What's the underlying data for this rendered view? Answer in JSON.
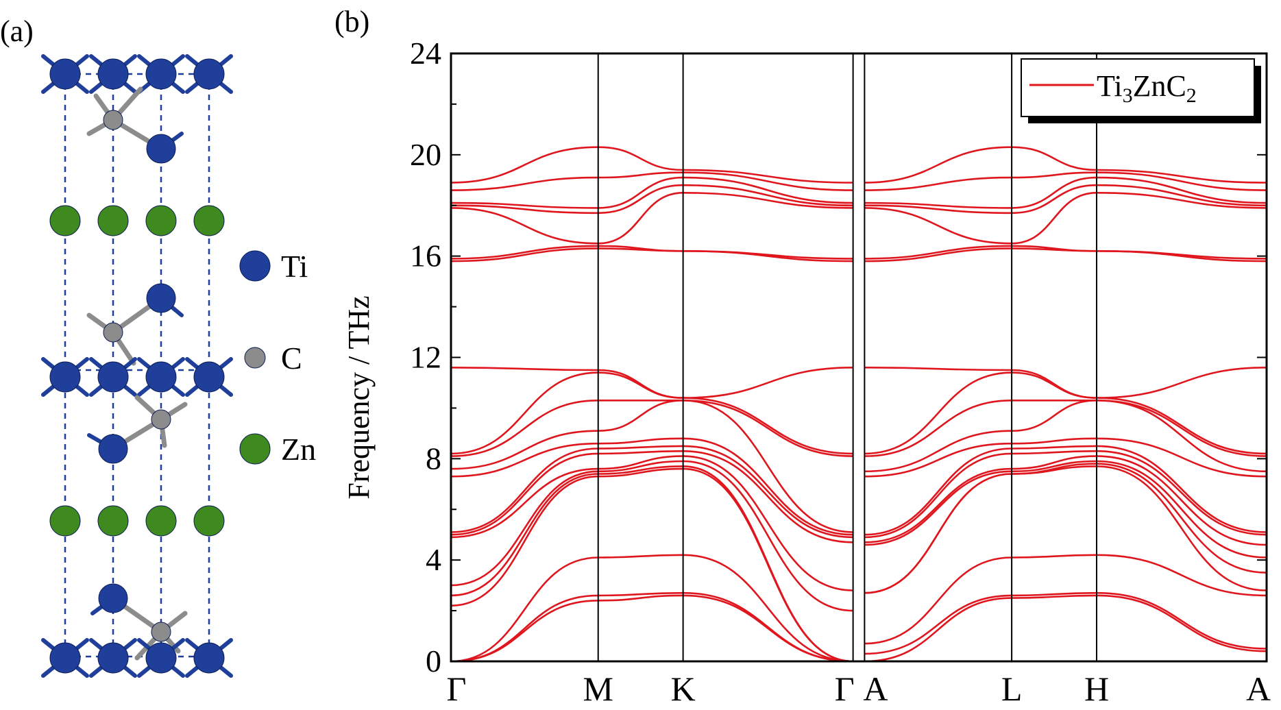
{
  "panels": {
    "a_label": "(a)",
    "b_label": "(b)"
  },
  "crystal": {
    "atom_colors": {
      "Ti": "#1f3f9a",
      "C": "#8c8c8c",
      "Zn": "#3f8a1e"
    },
    "bond_color": "#8c8c8c",
    "cell_line_color": "#1f3f9a",
    "legend": [
      {
        "symbol": "Ti",
        "color": "#1f3f9a",
        "icon": "ti-atom-icon"
      },
      {
        "symbol": "C",
        "color": "#8c8c8c",
        "icon": "c-atom-icon"
      },
      {
        "symbol": "Zn",
        "color": "#3f8a1e",
        "icon": "zn-atom-icon"
      }
    ]
  },
  "chart_data": {
    "type": "line",
    "title": "",
    "ylabel": "Frequency / THz",
    "xlabel": "",
    "ylim": [
      0,
      24
    ],
    "yticks": [
      0,
      4,
      8,
      12,
      16,
      20,
      24
    ],
    "line_color": "#e0161e",
    "high_symmetry_points": [
      {
        "label": "Γ",
        "x": 0
      },
      {
        "label": "M",
        "x": 1.0
      },
      {
        "label": "K",
        "x": 1.577
      },
      {
        "label": "Γ",
        "x": 2.732
      },
      {
        "label": "A",
        "x": 2.81
      },
      {
        "label": "L",
        "x": 3.81
      },
      {
        "label": "H",
        "x": 4.387
      },
      {
        "label": "A",
        "x": 5.542
      }
    ],
    "gamma_a_break": [
      2.732,
      2.81
    ],
    "legend": {
      "position": "top-right",
      "label_base": "Ti",
      "sub1": "3",
      "mid": "ZnC",
      "sub2": "2"
    },
    "series": [
      {
        "y": [
          0,
          2.4,
          2.6,
          0,
          0,
          2.5,
          2.6,
          0.4
        ]
      },
      {
        "y": [
          0,
          2.6,
          2.7,
          0,
          0.3,
          2.6,
          2.7,
          0.5
        ]
      },
      {
        "y": [
          0,
          4.1,
          4.2,
          0,
          0.7,
          4.1,
          4.2,
          2.6
        ]
      },
      {
        "y": [
          2.2,
          7.3,
          7.6,
          0,
          2.7,
          7.4,
          7.7,
          2.8
        ]
      },
      {
        "y": [
          2.6,
          7.4,
          7.7,
          0,
          2.7,
          7.4,
          7.8,
          3.5
        ]
      },
      {
        "y": [
          3.0,
          7.5,
          7.9,
          2.0,
          4.6,
          7.5,
          7.9,
          4.1
        ]
      },
      {
        "y": [
          4.9,
          7.6,
          8.1,
          2.8,
          4.7,
          7.6,
          8.1,
          4.6
        ]
      },
      {
        "y": [
          5.0,
          8.2,
          8.3,
          4.7,
          4.9,
          8.2,
          8.3,
          5.0
        ]
      },
      {
        "y": [
          5.1,
          8.4,
          8.5,
          4.9,
          5.0,
          8.4,
          8.5,
          5.1
        ]
      },
      {
        "y": [
          7.3,
          8.6,
          8.8,
          5.0,
          7.3,
          8.6,
          8.8,
          7.3
        ]
      },
      {
        "y": [
          7.6,
          9.1,
          10.3,
          5.1,
          7.5,
          9.1,
          10.3,
          7.5
        ]
      },
      {
        "y": [
          8.1,
          10.3,
          10.3,
          8.1,
          8.1,
          10.3,
          10.3,
          8.1
        ]
      },
      {
        "y": [
          8.2,
          11.4,
          10.4,
          8.2,
          8.2,
          11.4,
          10.4,
          8.2
        ]
      },
      {
        "y": [
          11.6,
          11.5,
          10.4,
          11.6,
          11.6,
          11.5,
          10.4,
          11.6
        ]
      },
      {
        "y": [
          15.8,
          16.3,
          16.2,
          15.8,
          15.8,
          16.3,
          16.2,
          15.8
        ]
      },
      {
        "y": [
          15.9,
          16.4,
          16.2,
          15.9,
          15.9,
          16.4,
          16.2,
          15.9
        ]
      },
      {
        "y": [
          17.9,
          16.5,
          18.5,
          17.9,
          17.9,
          16.5,
          18.5,
          17.9
        ]
      },
      {
        "y": [
          18.0,
          17.7,
          18.8,
          18.0,
          18.0,
          17.7,
          18.8,
          18.0
        ]
      },
      {
        "y": [
          18.1,
          17.9,
          19.1,
          18.1,
          18.1,
          17.9,
          19.1,
          18.1
        ]
      },
      {
        "y": [
          18.6,
          19.1,
          19.3,
          18.6,
          18.6,
          19.1,
          19.3,
          18.6
        ]
      },
      {
        "y": [
          18.9,
          20.3,
          19.4,
          18.9,
          18.9,
          20.3,
          19.4,
          18.9
        ]
      }
    ]
  }
}
